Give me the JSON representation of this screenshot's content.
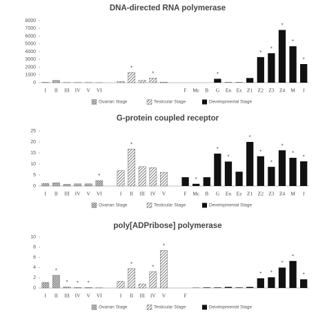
{
  "chart_data": [
    {
      "type": "bar",
      "title": "DNA-directed RNA polymerase",
      "categories": [
        "I",
        "II",
        "III",
        "IV",
        "V",
        "VI",
        null,
        null,
        null,
        null,
        null,
        "F",
        "Mc",
        "B",
        "G",
        "En",
        "Ez",
        "Z1",
        "Z2",
        "Z3",
        "Z4",
        "M",
        "J"
      ],
      "series": [
        {
          "name": "Ovarian Stage",
          "color": "#666",
          "pattern": "crosshatch",
          "values": [
            50,
            300,
            20,
            30,
            20,
            10,
            null,
            null,
            null,
            null,
            null,
            null,
            null,
            null,
            null,
            null,
            null,
            null,
            null,
            null,
            null,
            null,
            null
          ]
        },
        {
          "name": "Testicular Stage",
          "color": "#555",
          "pattern": "diagonal",
          "values": [
            null,
            null,
            null,
            null,
            null,
            null,
            150,
            1300,
            300,
            600,
            80,
            null,
            null,
            null,
            null,
            null,
            null,
            null,
            null,
            null,
            null,
            null,
            null
          ]
        },
        {
          "name": "Developmental Stage",
          "color": "#111",
          "pattern": "solid",
          "values": [
            null,
            null,
            null,
            null,
            null,
            null,
            null,
            null,
            null,
            null,
            null,
            0,
            0,
            0,
            500,
            50,
            50,
            600,
            3300,
            3800,
            6800,
            4700,
            2400
          ]
        }
      ],
      "markers": [
        null,
        null,
        null,
        null,
        null,
        null,
        null,
        "*",
        null,
        "*",
        null,
        null,
        null,
        null,
        "*",
        null,
        null,
        null,
        "*",
        "*",
        "*",
        "*",
        "*"
      ],
      "ylim": [
        0,
        8000
      ],
      "yticks": [
        0,
        1000,
        2000,
        3000,
        4000,
        5000,
        6000,
        7000,
        8000
      ]
    },
    {
      "type": "bar",
      "title": "G-protein coupled receptor",
      "categories": [
        "I",
        "II",
        "III",
        "IV",
        "V",
        "VI",
        "I",
        "II",
        "III",
        "IV",
        "V",
        "F",
        "Mc",
        "B",
        "G",
        "En",
        "Ez",
        "Z1",
        "Z2",
        "Z3",
        "Z4",
        "M",
        "J"
      ],
      "series": [
        {
          "name": "Ovarian Stage",
          "color": "#666",
          "pattern": "crosshatch",
          "values": [
            1.2,
            1.5,
            0.8,
            1.0,
            1.0,
            2.5,
            null,
            null,
            null,
            null,
            null,
            null,
            null,
            null,
            null,
            null,
            null,
            null,
            null,
            null,
            null,
            null,
            null
          ]
        },
        {
          "name": "Testicular Stage",
          "color": "#555",
          "pattern": "diagonal",
          "values": [
            null,
            null,
            null,
            null,
            null,
            null,
            7,
            16.8,
            8.8,
            8.3,
            6.2,
            null,
            null,
            null,
            null,
            null,
            null,
            null,
            null,
            null,
            null,
            null,
            null
          ]
        },
        {
          "name": "Developmental Stage",
          "color": "#111",
          "pattern": "solid",
          "values": [
            null,
            null,
            null,
            null,
            null,
            null,
            null,
            null,
            null,
            null,
            null,
            4,
            1,
            4,
            14.7,
            11.1,
            6.5,
            20,
            13.5,
            8.7,
            16.2,
            12.8,
            11.2
          ]
        }
      ],
      "markers": [
        null,
        null,
        null,
        null,
        null,
        "*",
        null,
        "*",
        null,
        null,
        null,
        null,
        "*",
        null,
        "*",
        "*",
        null,
        "*",
        "*",
        "*",
        "*",
        "*",
        "*"
      ],
      "ylim": [
        0,
        25
      ],
      "yticks": [
        0,
        5,
        10,
        15,
        20,
        25
      ]
    },
    {
      "type": "bar",
      "title": "poly[ADPribose] polymerase",
      "categories": [
        "I",
        "II",
        "III",
        "IV",
        "V",
        "VI",
        "I",
        "II",
        "III",
        "IV",
        "V",
        "F",
        null,
        null,
        null,
        null,
        null,
        null,
        null,
        null,
        null,
        null,
        null
      ],
      "series": [
        {
          "name": "Ovarian Stage",
          "color": "#666",
          "pattern": "crosshatch",
          "values": [
            1.1,
            2.5,
            0.2,
            0.1,
            0.1,
            0.05,
            null,
            null,
            null,
            null,
            null,
            null,
            null,
            null,
            null,
            null,
            null,
            null,
            null,
            null,
            null,
            null,
            null
          ]
        },
        {
          "name": "Testicular Stage",
          "color": "#555",
          "pattern": "diagonal",
          "values": [
            null,
            null,
            null,
            null,
            null,
            null,
            1.3,
            3.8,
            0.8,
            3.2,
            7.4,
            null,
            null,
            null,
            null,
            null,
            null,
            null,
            null,
            null,
            null,
            null,
            null
          ]
        },
        {
          "name": "Developmental Stage",
          "color": "#111",
          "pattern": "solid",
          "values": [
            null,
            null,
            null,
            null,
            null,
            null,
            null,
            null,
            null,
            null,
            null,
            0,
            0.05,
            0.1,
            0.1,
            0.2,
            0.1,
            0.2,
            1.9,
            2.1,
            4.0,
            5.3,
            1.7
          ]
        }
      ],
      "markers": [
        null,
        "*",
        "*",
        "*",
        "*",
        null,
        null,
        "*",
        null,
        "*",
        "*",
        null,
        null,
        null,
        null,
        null,
        null,
        null,
        "*",
        "*",
        "*",
        "*",
        "*"
      ],
      "ylim": [
        0,
        10
      ],
      "yticks": [
        0,
        2,
        4,
        6,
        8,
        10
      ]
    }
  ]
}
